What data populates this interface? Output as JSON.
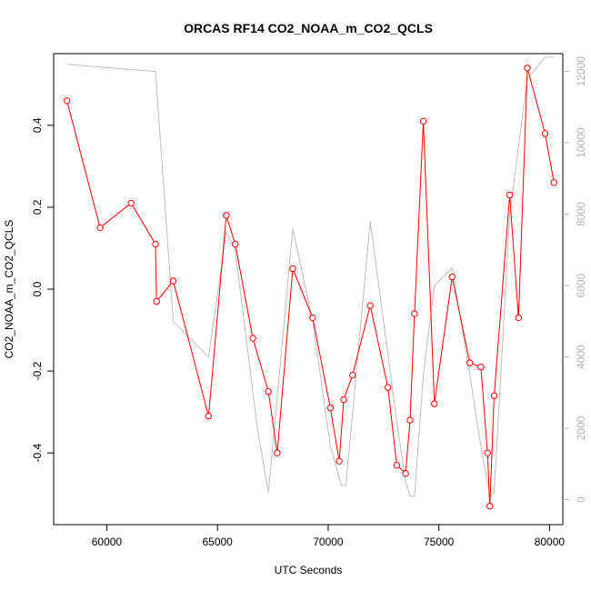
{
  "chart_data": {
    "type": "line",
    "title": "ORCAS RF14 CO2_NOAA_m_CO2_QCLS",
    "xlabel": "UTC Seconds",
    "ylabel": "CO2_NOAA_m_CO2_QCLS",
    "xlim": [
      57600,
      80600
    ],
    "ylim": [
      -0.575,
      0.575
    ],
    "y2lim": [
      -700,
      12500
    ],
    "x_ticks": [
      60000,
      65000,
      70000,
      75000,
      80000
    ],
    "x_tick_labels": [
      "60000",
      "65000",
      "70000",
      "75000",
      "80000"
    ],
    "y_ticks": [
      -0.4,
      -0.2,
      0.0,
      0.2,
      0.4
    ],
    "y_tick_labels": [
      "-0.4",
      "-0.2",
      "0.0",
      "0.2",
      "0.4"
    ],
    "y2_ticks": [
      0,
      2000,
      4000,
      6000,
      8000,
      10000,
      12000
    ],
    "y2_tick_labels": [
      "0",
      "2000",
      "4000",
      "6000",
      "8000",
      "10000",
      "12000"
    ],
    "grid": false,
    "series": [
      {
        "color": "#ff0000",
        "marker": "open-circle",
        "axis": "left",
        "x": [
          58200,
          59700,
          61100,
          62200,
          62250,
          63000,
          64600,
          65400,
          65800,
          66600,
          67300,
          67700,
          68400,
          69300,
          70100,
          70500,
          70700,
          71100,
          71900,
          72700,
          73100,
          73500,
          73700,
          73900,
          74300,
          74800,
          75600,
          76400,
          76900,
          77200,
          77300,
          77500,
          78200,
          78600,
          79000,
          79800,
          80200
        ],
        "values": [
          0.46,
          0.15,
          0.21,
          0.11,
          -0.03,
          0.02,
          -0.31,
          0.18,
          0.11,
          -0.12,
          -0.25,
          -0.4,
          0.05,
          -0.07,
          -0.29,
          -0.42,
          -0.27,
          -0.21,
          -0.04,
          -0.24,
          -0.43,
          -0.45,
          -0.32,
          -0.06,
          0.41,
          -0.28,
          0.03,
          -0.18,
          -0.19,
          -0.4,
          -0.53,
          -0.26,
          0.23,
          -0.07,
          0.54,
          0.38,
          0.26
        ]
      },
      {
        "color": "#bebebe",
        "marker": "none",
        "axis": "right",
        "x": [
          58200,
          62200,
          63000,
          64600,
          65400,
          65800,
          66800,
          67300,
          68400,
          69300,
          70100,
          70600,
          70800,
          71900,
          73100,
          73500,
          73700,
          73900,
          74300,
          74800,
          75600,
          76400,
          76900,
          77300,
          77500,
          78200,
          79000,
          79800,
          80200
        ],
        "values": [
          12200,
          12000,
          5000,
          4000,
          7500,
          7000,
          2000,
          200,
          7600,
          5000,
          1500,
          400,
          400,
          7800,
          2200,
          500,
          100,
          100,
          3500,
          6000,
          6500,
          3500,
          1500,
          100,
          200,
          8000,
          11800,
          12400,
          12400
        ]
      }
    ]
  }
}
